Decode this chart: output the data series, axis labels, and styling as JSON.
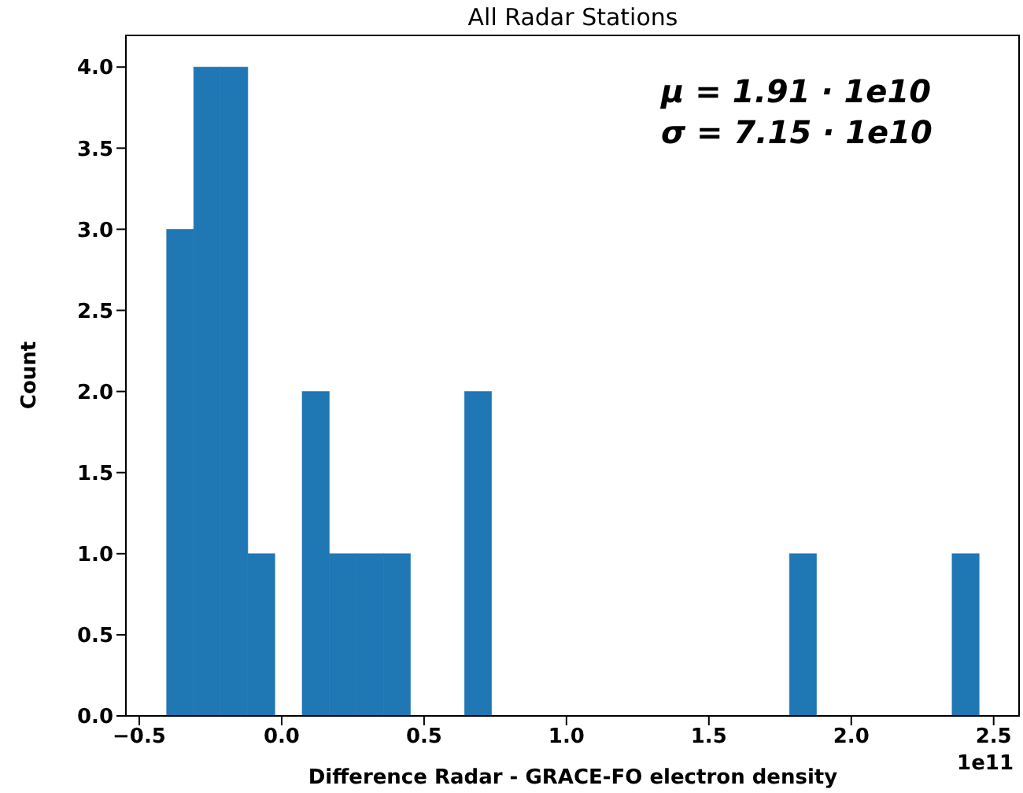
{
  "chart_data": {
    "type": "histogram",
    "title": "All Radar Stations",
    "xlabel": "Difference Radar - GRACE-FO electron density",
    "ylabel": "Count",
    "bins": [
      -0.404,
      -0.309,
      -0.214,
      -0.119,
      -0.024,
      0.072,
      0.167,
      0.262,
      0.357,
      0.452,
      0.547,
      0.642,
      0.737,
      0.832,
      0.927,
      1.023,
      1.118,
      1.213,
      1.308,
      1.403,
      1.498,
      1.593,
      1.688,
      1.783,
      1.878,
      1.974,
      2.069,
      2.164,
      2.259,
      2.354,
      2.449
    ],
    "values": [
      3,
      4,
      4,
      1,
      0,
      2,
      1,
      1,
      1,
      0,
      0,
      2,
      0,
      0,
      0,
      0,
      0,
      0,
      0,
      0,
      0,
      0,
      0,
      1,
      0,
      0,
      0,
      0,
      0,
      1
    ],
    "color": "#1f77b4",
    "xlim": [
      -0.547,
      2.592
    ],
    "ylim": [
      0,
      4.2
    ],
    "xticks": [
      {
        "value": -0.5,
        "label": "−0.5"
      },
      {
        "value": 0,
        "label": "0.0"
      },
      {
        "value": 0.5,
        "label": "0.5"
      },
      {
        "value": 1,
        "label": "1.0"
      },
      {
        "value": 1.5,
        "label": "1.5"
      },
      {
        "value": 2,
        "label": "2.0"
      },
      {
        "value": 2.5,
        "label": "2.5"
      }
    ],
    "yticks": [
      {
        "value": 0,
        "label": "0.0"
      },
      {
        "value": 0.5,
        "label": "0.5"
      },
      {
        "value": 1,
        "label": "1.0"
      },
      {
        "value": 1.5,
        "label": "1.5"
      },
      {
        "value": 2,
        "label": "2.0"
      },
      {
        "value": 2.5,
        "label": "2.5"
      },
      {
        "value": 3,
        "label": "3.0"
      },
      {
        "value": 3.5,
        "label": "3.5"
      },
      {
        "value": 4,
        "label": "4.0"
      }
    ],
    "grid": false,
    "legend": false,
    "annotations": [
      "μ = 1.91 · 1e10",
      "σ = 7.15 · 1e10",
      "1e11"
    ]
  }
}
